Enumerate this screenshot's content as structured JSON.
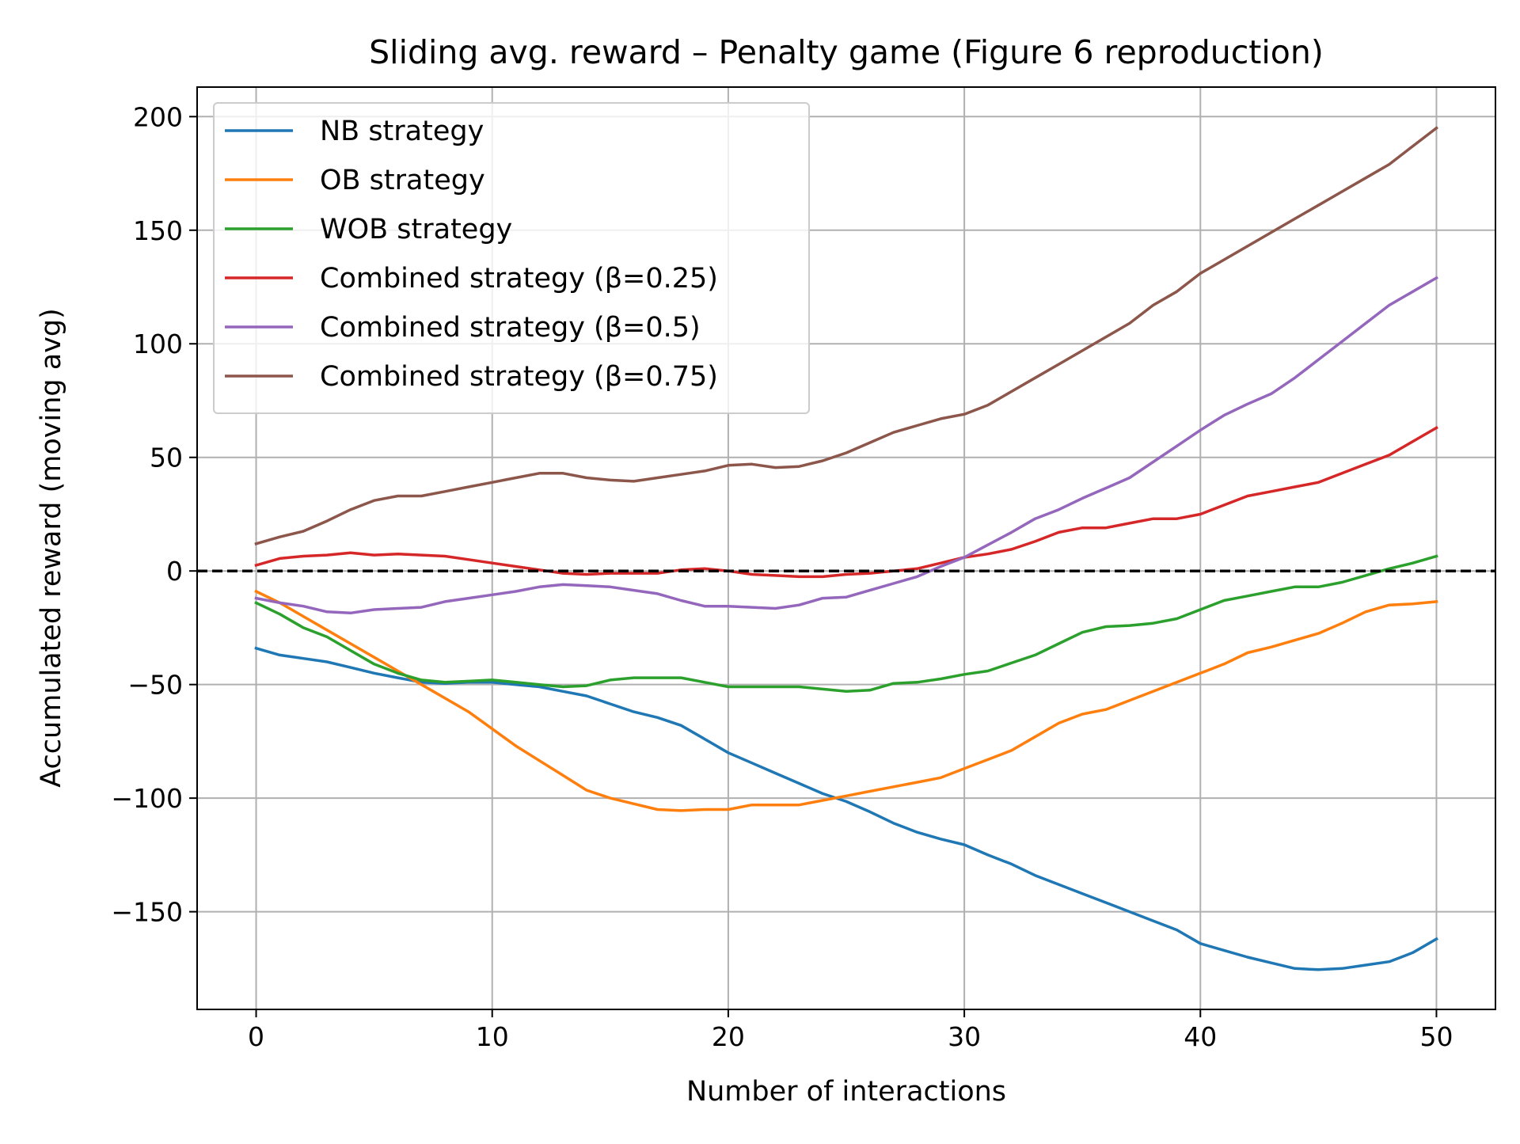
{
  "chart_data": {
    "type": "line",
    "title": "Sliding avg. reward – Penalty game (Figure 6 reproduction)",
    "xlabel": "Number of interactions",
    "ylabel": "Accumulated reward (moving avg)",
    "xlim": [
      -2.5,
      52.5
    ],
    "ylim": [
      -193,
      213
    ],
    "xticks": [
      0,
      10,
      20,
      30,
      40,
      50
    ],
    "yticks": [
      -150,
      -100,
      -50,
      0,
      50,
      100,
      150,
      200
    ],
    "xtick_labels": [
      "0",
      "10",
      "20",
      "30",
      "40",
      "50"
    ],
    "ytick_labels": [
      "−150",
      "−100",
      "−50",
      "0",
      "50",
      "100",
      "150",
      "200"
    ],
    "grid": true,
    "legend_position": "upper-left",
    "reference_line": {
      "y": 0,
      "style": "dashed",
      "color": "#000000"
    },
    "x": [
      0,
      1,
      2,
      3,
      4,
      5,
      6,
      7,
      8,
      9,
      10,
      11,
      12,
      13,
      14,
      15,
      16,
      17,
      18,
      19,
      20,
      21,
      22,
      23,
      24,
      25,
      26,
      27,
      28,
      29,
      30,
      31,
      32,
      33,
      34,
      35,
      36,
      37,
      38,
      39,
      40,
      41,
      42,
      43,
      44,
      45,
      46,
      47,
      48,
      49,
      50
    ],
    "series": [
      {
        "name": "NB strategy",
        "color": "#1f77b4",
        "values": [
          -34,
          -37,
          -38.5,
          -40,
          -42.5,
          -45,
          -47,
          -49,
          -49.5,
          -49,
          -49,
          -50,
          -51,
          -53,
          -55,
          -58.5,
          -62,
          -64.5,
          -68,
          -74,
          -80,
          -84.5,
          -89,
          -93.5,
          -98,
          -101.5,
          -106,
          -111,
          -115,
          -118,
          -120.5,
          -125,
          -129,
          -134,
          -138,
          -142,
          -146,
          -150,
          -154,
          -158,
          -164,
          -167,
          -170,
          -172.5,
          -175,
          -175.5,
          -175,
          -173.5,
          -172,
          -168,
          -162
        ]
      },
      {
        "name": "OB strategy",
        "color": "#ff7f0e",
        "values": [
          -9,
          -14,
          -20,
          -26,
          -32,
          -38,
          -44,
          -50,
          -56,
          -62,
          -69.5,
          -77,
          -83.5,
          -90,
          -96.5,
          -100,
          -102.5,
          -105,
          -105.5,
          -105,
          -105,
          -103,
          -103,
          -103,
          -101,
          -99,
          -97,
          -95,
          -93,
          -91,
          -87,
          -83,
          -79,
          -73,
          -67,
          -63,
          -61,
          -57,
          -53,
          -49,
          -45,
          -41,
          -36,
          -33.5,
          -30.5,
          -27.5,
          -23,
          -18,
          -15,
          -14.5,
          -13.5
        ]
      },
      {
        "name": "WOB strategy",
        "color": "#2ca02c",
        "values": [
          -14,
          -19,
          -25,
          -29,
          -35,
          -41,
          -45,
          -48,
          -49,
          -48.5,
          -48,
          -49,
          -50,
          -51,
          -50.5,
          -48,
          -47,
          -47,
          -47,
          -49,
          -51,
          -51,
          -51,
          -51,
          -52,
          -53,
          -52.5,
          -49.5,
          -49,
          -47.5,
          -45.5,
          -44,
          -40.5,
          -37,
          -32,
          -27,
          -24.5,
          -24,
          -23,
          -21,
          -17,
          -13,
          -11,
          -9,
          -7,
          -7,
          -5,
          -2,
          1,
          3.5,
          6.5
        ]
      },
      {
        "name": "Combined strategy (β=0.25)",
        "color": "#d62728",
        "values": [
          2.5,
          5.5,
          6.5,
          7,
          8,
          7,
          7.5,
          7,
          6.5,
          5,
          3.5,
          2,
          0.5,
          -1,
          -1.5,
          -1,
          -1,
          -1,
          0.5,
          1,
          0,
          -1.5,
          -2,
          -2.5,
          -2.5,
          -1.5,
          -1,
          0,
          1,
          3.5,
          6,
          7.5,
          9.5,
          13,
          17,
          19,
          19,
          21,
          23,
          23,
          25,
          29,
          33,
          35,
          37,
          39,
          43,
          47,
          51,
          57,
          63
        ]
      },
      {
        "name": "Combined strategy (β=0.5)",
        "color": "#9467bd",
        "values": [
          -12,
          -14,
          -15.5,
          -18,
          -18.5,
          -17,
          -16.5,
          -16,
          -13.5,
          -12,
          -10.5,
          -9,
          -7,
          -6,
          -6.5,
          -7,
          -8.5,
          -10,
          -13,
          -15.5,
          -15.5,
          -16,
          -16.5,
          -15,
          -12,
          -11.5,
          -8.5,
          -5.5,
          -2.5,
          2,
          6,
          11.5,
          17,
          23,
          27,
          32,
          36.5,
          41,
          48,
          55,
          62,
          68.5,
          73.5,
          78,
          85,
          93,
          101,
          109,
          117,
          123,
          129
        ]
      },
      {
        "name": "Combined strategy (β=0.75)",
        "color": "#8c564b",
        "values": [
          12,
          15,
          17.5,
          22,
          27,
          31,
          33,
          33,
          35,
          37,
          39,
          41,
          43,
          43,
          41,
          40,
          39.5,
          41,
          42.5,
          44,
          46.5,
          47,
          45.5,
          46,
          48.5,
          52,
          56.5,
          61,
          64,
          67,
          69,
          73,
          79,
          85,
          91,
          97,
          103,
          109,
          117,
          123,
          131,
          137,
          143,
          149,
          155,
          161,
          167,
          173,
          179,
          187,
          195
        ]
      }
    ]
  }
}
